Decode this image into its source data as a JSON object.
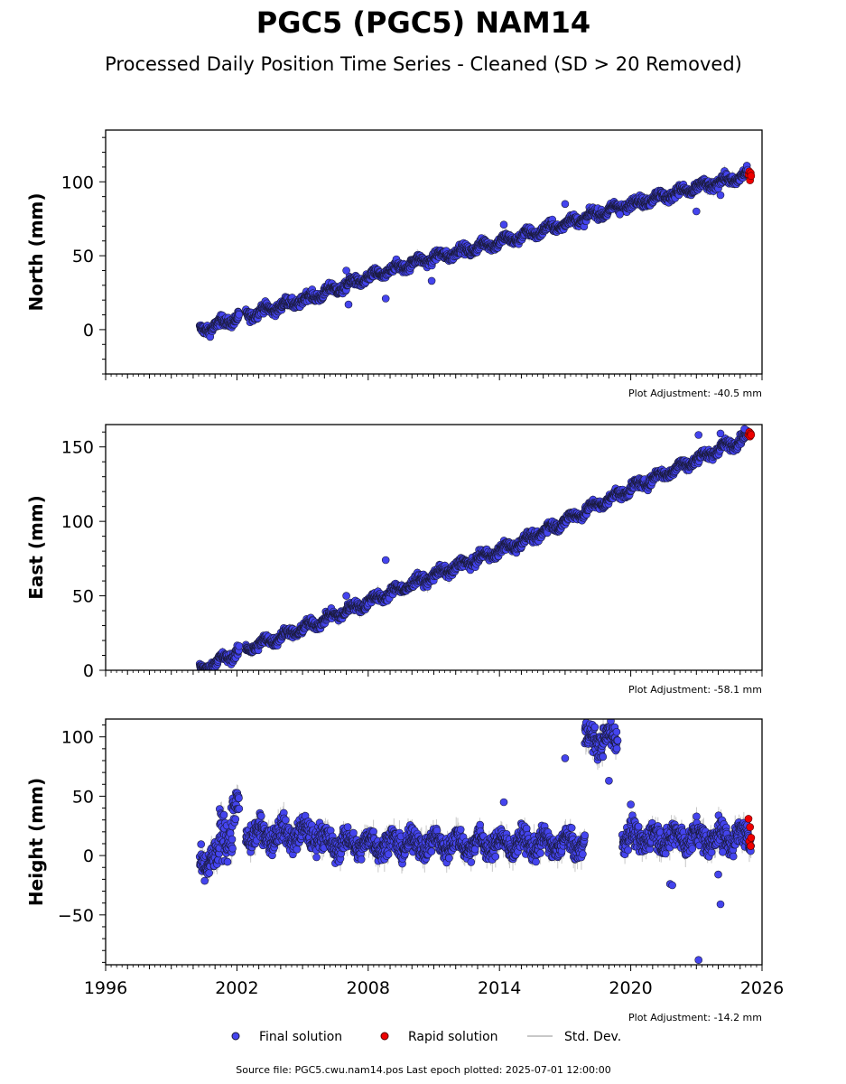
{
  "title": "PGC5 (PGC5) NAM14",
  "subtitle": "Processed Daily Position Time Series - Cleaned (SD > 20 Removed)",
  "footer": "Source file: PGC5.cwu.nam14.pos  Last epoch plotted: 2025-07-01 12:00:00",
  "colors": {
    "final": "#4444ee",
    "final_edge": "#1a1a3a",
    "rapid": "#ee0000",
    "stddev": "#c8c8c8"
  },
  "legend": {
    "final": "Final solution",
    "rapid": "Rapid solution",
    "stddev": "Std. Dev.",
    "placement": "bottom-center"
  },
  "chart_data": [
    {
      "type": "scatter",
      "ylabel": "North (mm)",
      "adjustment": "Plot Adjustment: -40.5 mm",
      "xlim": [
        1996,
        2026
      ],
      "ylim": [
        -30,
        135
      ],
      "yticks": [
        0,
        50,
        100
      ],
      "xticks": [
        1996,
        2002,
        2008,
        2014,
        2020,
        2026
      ],
      "show_xtick_labels": false,
      "trend": [
        [
          2000.3,
          -1
        ],
        [
          2002.0,
          8
        ],
        [
          2005.0,
          20
        ],
        [
          2010.0,
          45
        ],
        [
          2015.0,
          63
        ],
        [
          2020.0,
          85
        ],
        [
          2025.5,
          105
        ]
      ],
      "outliers": [
        [
          2008.8,
          21
        ],
        [
          2010.9,
          33
        ],
        [
          2007.0,
          40
        ],
        [
          2007.1,
          17
        ],
        [
          2014.2,
          71
        ],
        [
          2017.0,
          85
        ],
        [
          2019.5,
          78
        ],
        [
          2023.0,
          80
        ],
        [
          2024.1,
          91
        ]
      ],
      "rapid": [
        [
          2025.38,
          105
        ],
        [
          2025.42,
          107
        ],
        [
          2025.45,
          101
        ],
        [
          2025.48,
          106
        ],
        [
          2025.5,
          104
        ]
      ],
      "gaps": [
        [
          2002.1,
          2002.4
        ]
      ]
    },
    {
      "type": "scatter",
      "ylabel": "East (mm)",
      "adjustment": "Plot Adjustment: -58.1 mm",
      "xlim": [
        1996,
        2026
      ],
      "ylim": [
        0,
        165
      ],
      "yticks": [
        0,
        50,
        100,
        150
      ],
      "xticks": [
        1996,
        2002,
        2008,
        2014,
        2020,
        2026
      ],
      "show_xtick_labels": false,
      "trend": [
        [
          2000.3,
          0
        ],
        [
          2002.0,
          12
        ],
        [
          2005.0,
          28
        ],
        [
          2010.0,
          58
        ],
        [
          2015.0,
          86
        ],
        [
          2020.0,
          122
        ],
        [
          2025.5,
          158
        ]
      ],
      "outliers": [
        [
          2008.8,
          74
        ],
        [
          2007.0,
          50
        ],
        [
          2023.1,
          158
        ],
        [
          2024.1,
          159
        ],
        [
          2025.2,
          162
        ]
      ],
      "rapid": [
        [
          2025.38,
          158
        ],
        [
          2025.42,
          160
        ],
        [
          2025.45,
          157
        ],
        [
          2025.48,
          159
        ],
        [
          2025.5,
          158
        ]
      ],
      "gaps": [
        [
          2002.1,
          2002.4
        ]
      ]
    },
    {
      "type": "scatter",
      "ylabel": "Height (mm)",
      "adjustment": "Plot Adjustment: -14.2 mm",
      "xlim": [
        1996,
        2026
      ],
      "ylim": [
        -92,
        115
      ],
      "yticks": [
        -50,
        0,
        50,
        100
      ],
      "xticks": [
        1996,
        2002,
        2008,
        2014,
        2020,
        2026
      ],
      "show_xtick_labels": true,
      "segments": [
        {
          "start": 2000.3,
          "end": 2001.2,
          "level": -5,
          "spread": 10
        },
        {
          "start": 2001.2,
          "end": 2001.8,
          "level": 20,
          "spread": 15
        },
        {
          "start": 2001.8,
          "end": 2002.1,
          "level": 38,
          "spread": 10
        },
        {
          "start": 2002.4,
          "end": 2005.9,
          "level": 18,
          "spread": 9
        },
        {
          "start": 2005.9,
          "end": 2017.9,
          "level": 10,
          "spread": 8
        },
        {
          "start": 2017.9,
          "end": 2019.4,
          "level": 98,
          "spread": 9
        },
        {
          "start": 2019.6,
          "end": 2025.5,
          "level": 15,
          "spread": 9
        }
      ],
      "outliers": [
        [
          2017.0,
          82
        ],
        [
          2019.0,
          63
        ],
        [
          2014.2,
          45
        ],
        [
          2021.8,
          -24
        ],
        [
          2021.9,
          -25
        ],
        [
          2023.1,
          -88
        ],
        [
          2024.1,
          -41
        ],
        [
          2024.0,
          -16
        ],
        [
          2024.2,
          3
        ],
        [
          2020.0,
          43
        ]
      ],
      "rapid": [
        [
          2025.38,
          31
        ],
        [
          2025.42,
          12
        ],
        [
          2025.45,
          24
        ],
        [
          2025.48,
          8
        ],
        [
          2025.5,
          15
        ]
      ],
      "gaps": [
        [
          2002.1,
          2002.4
        ],
        [
          2019.4,
          2019.6
        ]
      ]
    }
  ]
}
